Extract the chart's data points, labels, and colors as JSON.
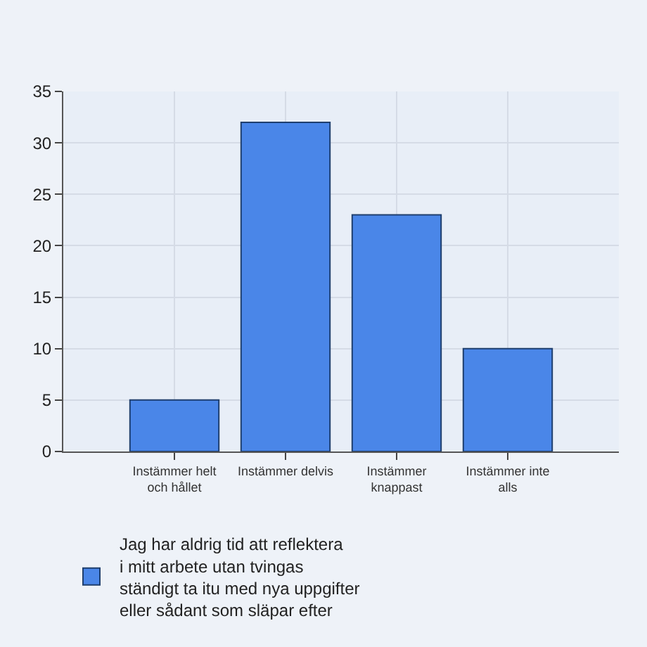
{
  "chart_data": {
    "type": "bar",
    "categories": [
      "Instämmer helt och hållet",
      "Instämmer delvis",
      "Instämmer knappast",
      "Instämmer inte alls"
    ],
    "series": [
      {
        "name": "Jag har aldrig tid att reflektera\ni mitt arbete utan tvingas\nständigt ta itu med nya uppgifter\neller sådant som släpar efter",
        "color": "#4a86e8",
        "values": [
          5,
          32,
          23,
          10
        ]
      }
    ],
    "ylim": [
      0,
      35
    ],
    "yticks": [
      0,
      5,
      10,
      15,
      20,
      25,
      30,
      35
    ],
    "grid": true,
    "legend": "bottom left"
  }
}
